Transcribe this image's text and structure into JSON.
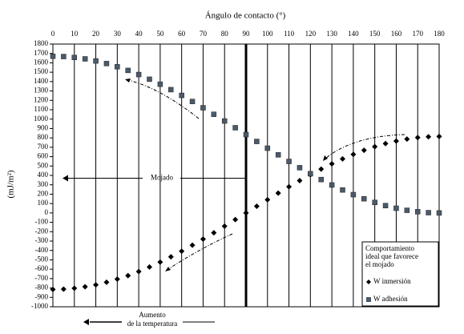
{
  "chart_data": {
    "type": "scatter",
    "title": "Ángulo de contacto (°)",
    "y_label": "(mJ/m²)",
    "x": [
      0,
      5,
      10,
      15,
      20,
      25,
      30,
      35,
      40,
      45,
      50,
      55,
      60,
      65,
      70,
      75,
      80,
      85,
      90,
      95,
      100,
      105,
      110,
      115,
      120,
      125,
      130,
      135,
      140,
      145,
      150,
      155,
      160,
      165,
      170,
      175,
      180
    ],
    "series": [
      {
        "name": "W inmersión",
        "color": "#000000",
        "marker": "diamond",
        "values": [
          -815,
          -812,
          -803,
          -787,
          -766,
          -739,
          -706,
          -668,
          -624,
          -576,
          -524,
          -467,
          -408,
          -344,
          -279,
          -211,
          -141,
          -71,
          0,
          71,
          141,
          211,
          279,
          344,
          408,
          467,
          524,
          576,
          624,
          668,
          706,
          739,
          766,
          787,
          803,
          812,
          815
        ]
      },
      {
        "name": "W adhesión",
        "color": "#4a5a6a",
        "marker": "square",
        "values": [
          1670,
          1667,
          1657,
          1642,
          1620,
          1592,
          1558,
          1519,
          1475,
          1425,
          1372,
          1314,
          1253,
          1188,
          1121,
          1051,
          980,
          908,
          835,
          762,
          690,
          619,
          549,
          482,
          418,
          356,
          298,
          245,
          195,
          151,
          112,
          78,
          50,
          28,
          13,
          3,
          0
        ]
      }
    ],
    "xlim": [
      0,
      180
    ],
    "xticks": [
      0,
      10,
      20,
      30,
      40,
      50,
      60,
      70,
      80,
      90,
      100,
      110,
      120,
      130,
      140,
      150,
      160,
      170,
      180
    ],
    "ylim": [
      -1000,
      1800
    ],
    "yticks": [
      -1000,
      -900,
      -800,
      -700,
      -600,
      -500,
      -400,
      -300,
      -200,
      -100,
      0,
      100,
      200,
      300,
      400,
      500,
      600,
      700,
      800,
      900,
      1000,
      1100,
      1200,
      1300,
      1400,
      1500,
      1600,
      1700,
      1800
    ],
    "grid": true,
    "annotations": [
      "Mojado",
      "Aumento",
      "de la temperatura"
    ],
    "legend_title": [
      "Comportamiento",
      "ideal que favorece",
      "el mojado"
    ],
    "legend_position": "lower right"
  }
}
